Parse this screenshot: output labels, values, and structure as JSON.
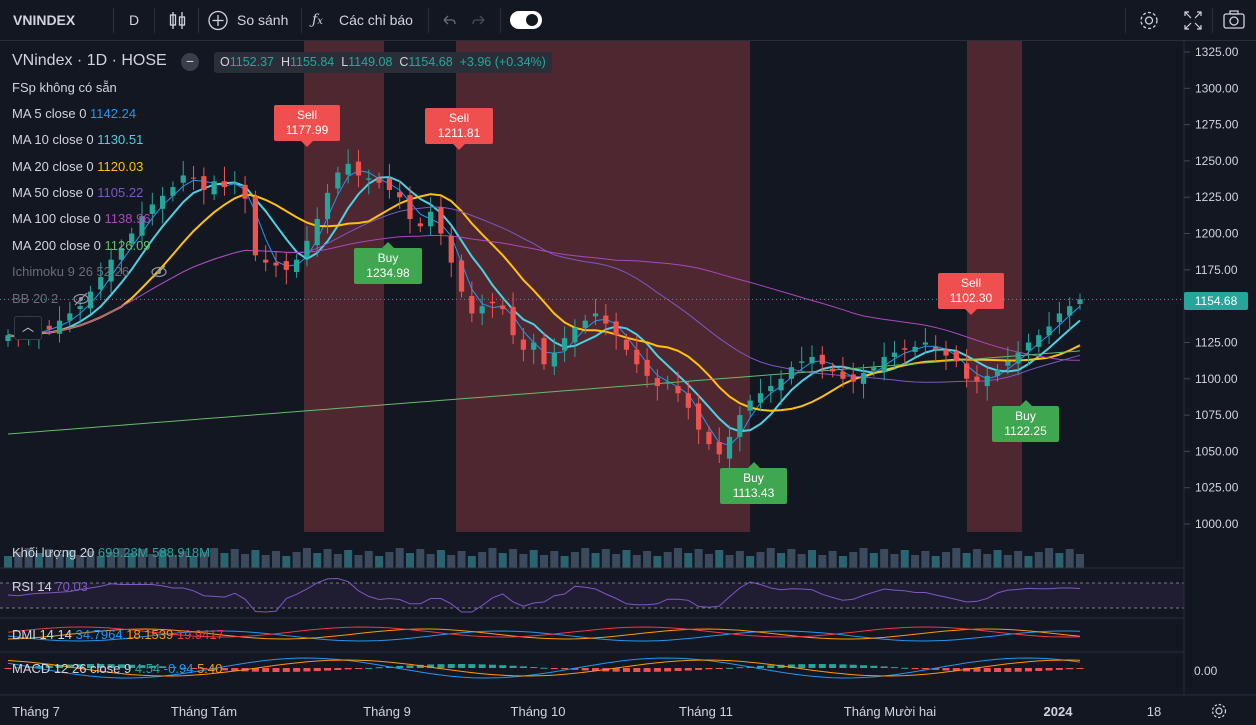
{
  "toolbar": {
    "symbol": "VNINDEX",
    "interval": "D",
    "compare_label": "So sánh",
    "indicators_label": "Các chỉ báo"
  },
  "legend": {
    "title": "VNindex · 1D · HOSE",
    "fsp": "FSp  không có sẵn",
    "ohlc": {
      "o_label": "O",
      "o": "1152.37",
      "h_label": "H",
      "h": "1155.84",
      "l_label": "L",
      "l": "1149.08",
      "c_label": "C",
      "c": "1154.68",
      "change": "+3.96 (+0.34%)"
    },
    "ma": [
      {
        "label": "MA 5 close 0",
        "value": "1142.24",
        "color": "#2196f3"
      },
      {
        "label": "MA 10 close 0",
        "value": "1130.51",
        "color": "#4dd0e1"
      },
      {
        "label": "MA 20 close 0",
        "value": "1120.03",
        "color": "#ffc107"
      },
      {
        "label": "MA 50 close 0",
        "value": "1105.22",
        "color": "#7e57c2"
      },
      {
        "label": "MA 100 close 0",
        "value": "1138.96",
        "color": "#ab47bc"
      },
      {
        "label": "MA 200 close 0",
        "value": "1126.09",
        "color": "#66bb6a"
      }
    ],
    "ichimoku": "Ichimoku 9 26 52 26",
    "bb": "BB 20 2"
  },
  "last_price": "1154.68",
  "signals": [
    {
      "type": "sell",
      "label": "Sell",
      "value": "1177.99"
    },
    {
      "type": "sell",
      "label": "Sell",
      "value": "1211.81"
    },
    {
      "type": "sell",
      "label": "Sell",
      "value": "1102.30"
    },
    {
      "type": "buy",
      "label": "Buy",
      "value": "1234.98"
    },
    {
      "type": "buy",
      "label": "Buy",
      "value": "1113.43"
    },
    {
      "type": "buy",
      "label": "Buy",
      "value": "1122.25"
    }
  ],
  "panes": {
    "volume": {
      "label": "Khối lượng 20",
      "v1": "699.28M",
      "v2": "588.918M"
    },
    "rsi": {
      "label": "RSI 14",
      "v1": "70.03"
    },
    "dmi": {
      "label": "DMI 14 14",
      "v1": "34.7964",
      "v2": "18.1539",
      "v3": "19.9417"
    },
    "macd": {
      "label": "MACD 12 26 close 9",
      "v1": "4.54",
      "v2": "-0.94",
      "v3": "5.40",
      "axis": "0.00"
    }
  },
  "chart_data": {
    "type": "line",
    "price_axis": [
      "1325.00",
      "1300.00",
      "1275.00",
      "1250.00",
      "1225.00",
      "1200.00",
      "1175.00",
      "1150.00",
      "1125.00",
      "1100.00",
      "1075.00",
      "1050.00",
      "1025.00",
      "1000.00"
    ],
    "ylim": [
      995,
      1330
    ],
    "time_axis": [
      "Tháng 7",
      "Tháng Tám",
      "Tháng 9",
      "Tháng 10",
      "Tháng 11",
      "Tháng Mười hai",
      "2024",
      "18"
    ],
    "close_series": [
      1130,
      1128,
      1132,
      1135,
      1134,
      1140,
      1145,
      1150,
      1160,
      1170,
      1182,
      1190,
      1200,
      1212,
      1220,
      1226,
      1232,
      1240,
      1238,
      1230,
      1236,
      1232,
      1235,
      1224,
      1185,
      1180,
      1178,
      1175,
      1182,
      1195,
      1210,
      1228,
      1242,
      1248,
      1240,
      1238,
      1235,
      1230,
      1225,
      1210,
      1205,
      1215,
      1200,
      1180,
      1160,
      1145,
      1150,
      1152,
      1148,
      1130,
      1120,
      1125,
      1110,
      1118,
      1128,
      1135,
      1140,
      1145,
      1138,
      1130,
      1120,
      1110,
      1102,
      1095,
      1098,
      1090,
      1080,
      1065,
      1055,
      1048,
      1060,
      1075,
      1085,
      1090,
      1095,
      1100,
      1108,
      1112,
      1115,
      1110,
      1105,
      1100,
      1098,
      1104,
      1108,
      1115,
      1118,
      1120,
      1122,
      1125,
      1120,
      1116,
      1112,
      1100,
      1098,
      1102,
      1106,
      1112,
      1118,
      1125,
      1130,
      1136,
      1145,
      1150,
      1154.68
    ]
  }
}
